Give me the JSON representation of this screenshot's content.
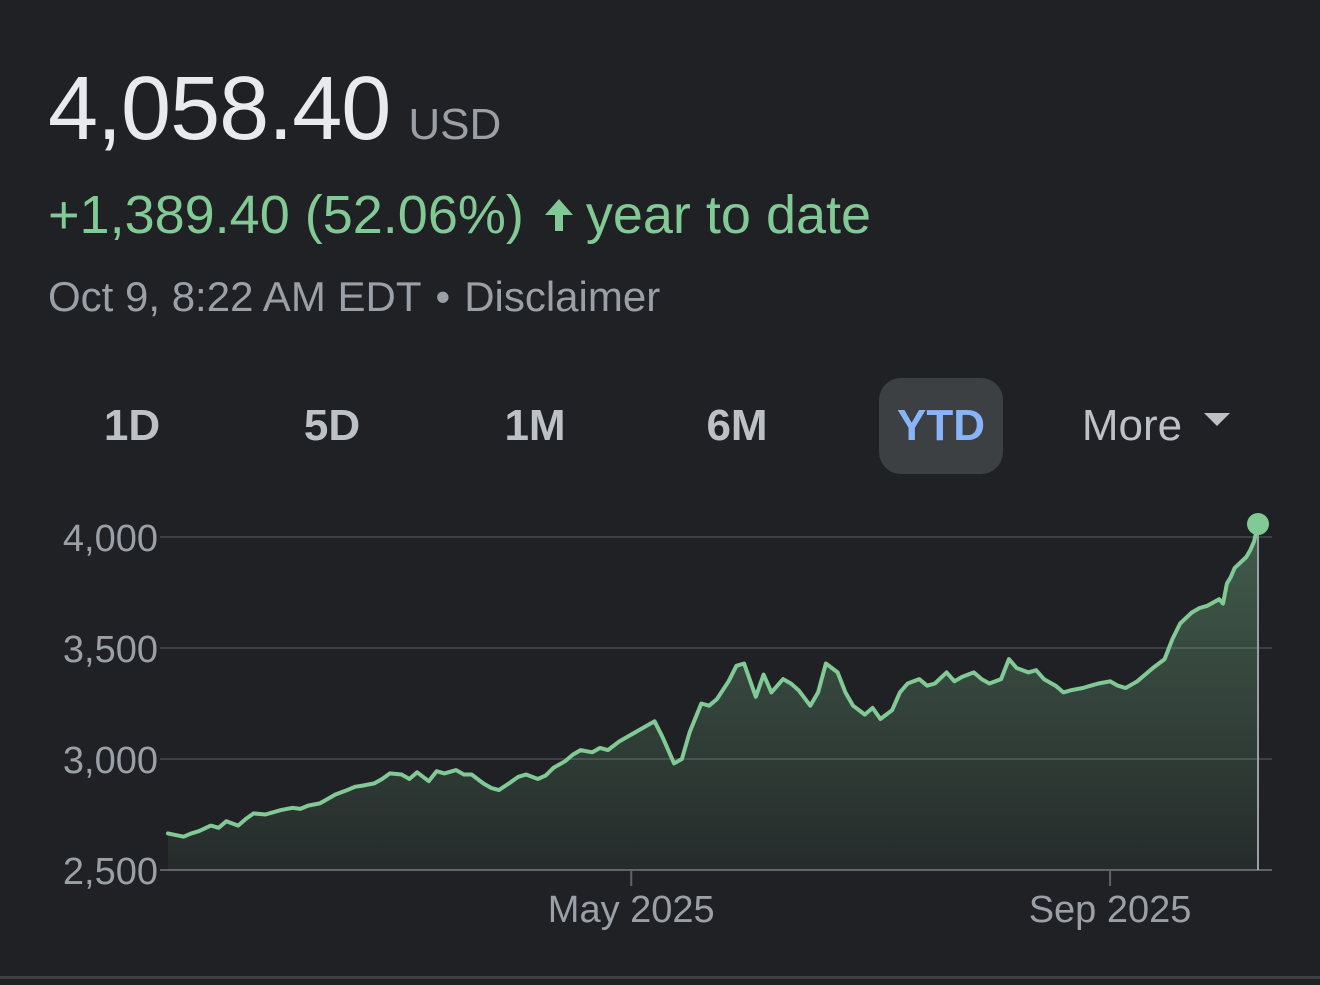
{
  "header": {
    "price": "4,058.40",
    "currency": "USD",
    "change": "+1,389.40 (52.06%)",
    "period": "year to date",
    "timestamp": "Oct 9, 8:22 AM EDT",
    "separator": "•",
    "disclaimer": "Disclaimer"
  },
  "range_tabs": [
    "1D",
    "5D",
    "1M",
    "6M",
    "YTD",
    "More"
  ],
  "active_tab": "YTD",
  "colors": {
    "background": "#202124",
    "positive": "#81c995",
    "active_tab_text": "#8ab4f8",
    "active_tab_bg": "#3c4043"
  },
  "chart_data": {
    "type": "area",
    "ylim": [
      2500,
      4000
    ],
    "yticks": [
      2500,
      3000,
      3500,
      4000
    ],
    "ytick_labels": [
      "2,500",
      "3,000",
      "3,500",
      "4,000"
    ],
    "x_range": [
      "2025-01-02",
      "2025-10-09"
    ],
    "xtick_labels": [
      {
        "date": "2025-05-01",
        "label": "May 2025"
      },
      {
        "date": "2025-09-01",
        "label": "Sep 2025"
      }
    ],
    "grid": "horizontal",
    "series": [
      {
        "points": [
          [
            "2025-01-02",
            2665
          ],
          [
            "2025-01-06",
            2650
          ],
          [
            "2025-01-08",
            2665
          ],
          [
            "2025-01-10",
            2675
          ],
          [
            "2025-01-13",
            2700
          ],
          [
            "2025-01-15",
            2690
          ],
          [
            "2025-01-17",
            2720
          ],
          [
            "2025-01-20",
            2700
          ],
          [
            "2025-01-22",
            2730
          ],
          [
            "2025-01-24",
            2755
          ],
          [
            "2025-01-27",
            2750
          ],
          [
            "2025-01-29",
            2760
          ],
          [
            "2025-01-31",
            2770
          ],
          [
            "2025-02-03",
            2780
          ],
          [
            "2025-02-05",
            2775
          ],
          [
            "2025-02-07",
            2790
          ],
          [
            "2025-02-10",
            2800
          ],
          [
            "2025-02-12",
            2820
          ],
          [
            "2025-02-14",
            2840
          ],
          [
            "2025-02-17",
            2860
          ],
          [
            "2025-02-19",
            2875
          ],
          [
            "2025-02-21",
            2880
          ],
          [
            "2025-02-24",
            2890
          ],
          [
            "2025-02-26",
            2910
          ],
          [
            "2025-02-28",
            2935
          ],
          [
            "2025-03-03",
            2930
          ],
          [
            "2025-03-05",
            2910
          ],
          [
            "2025-03-07",
            2940
          ],
          [
            "2025-03-10",
            2900
          ],
          [
            "2025-03-12",
            2945
          ],
          [
            "2025-03-14",
            2935
          ],
          [
            "2025-03-17",
            2950
          ],
          [
            "2025-03-19",
            2930
          ],
          [
            "2025-03-21",
            2930
          ],
          [
            "2025-03-24",
            2890
          ],
          [
            "2025-03-26",
            2870
          ],
          [
            "2025-03-28",
            2860
          ],
          [
            "2025-03-31",
            2895
          ],
          [
            "2025-04-02",
            2920
          ],
          [
            "2025-04-04",
            2930
          ],
          [
            "2025-04-07",
            2910
          ],
          [
            "2025-04-09",
            2925
          ],
          [
            "2025-04-11",
            2960
          ],
          [
            "2025-04-14",
            2990
          ],
          [
            "2025-04-16",
            3020
          ],
          [
            "2025-04-18",
            3040
          ],
          [
            "2025-04-21",
            3030
          ],
          [
            "2025-04-23",
            3050
          ],
          [
            "2025-04-25",
            3040
          ],
          [
            "2025-04-28",
            3080
          ],
          [
            "2025-04-30",
            3100
          ],
          [
            "2025-05-02",
            3120
          ],
          [
            "2025-05-05",
            3150
          ],
          [
            "2025-05-07",
            3170
          ],
          [
            "2025-05-09",
            3100
          ],
          [
            "2025-05-12",
            2980
          ],
          [
            "2025-05-14",
            3000
          ],
          [
            "2025-05-16",
            3120
          ],
          [
            "2025-05-19",
            3250
          ],
          [
            "2025-05-21",
            3240
          ],
          [
            "2025-05-23",
            3270
          ],
          [
            "2025-05-26",
            3350
          ],
          [
            "2025-05-28",
            3420
          ],
          [
            "2025-05-30",
            3430
          ],
          [
            "2025-06-02",
            3280
          ],
          [
            "2025-06-04",
            3380
          ],
          [
            "2025-06-06",
            3300
          ],
          [
            "2025-06-09",
            3360
          ],
          [
            "2025-06-11",
            3340
          ],
          [
            "2025-06-13",
            3310
          ],
          [
            "2025-06-16",
            3240
          ],
          [
            "2025-06-18",
            3300
          ],
          [
            "2025-06-20",
            3430
          ],
          [
            "2025-06-23",
            3390
          ],
          [
            "2025-06-25",
            3300
          ],
          [
            "2025-06-27",
            3240
          ],
          [
            "2025-06-30",
            3200
          ],
          [
            "2025-07-02",
            3230
          ],
          [
            "2025-07-04",
            3180
          ],
          [
            "2025-07-07",
            3220
          ],
          [
            "2025-07-09",
            3300
          ],
          [
            "2025-07-11",
            3340
          ],
          [
            "2025-07-14",
            3360
          ],
          [
            "2025-07-16",
            3330
          ],
          [
            "2025-07-18",
            3340
          ],
          [
            "2025-07-21",
            3390
          ],
          [
            "2025-07-23",
            3350
          ],
          [
            "2025-07-25",
            3370
          ],
          [
            "2025-07-28",
            3390
          ],
          [
            "2025-07-30",
            3360
          ],
          [
            "2025-08-01",
            3340
          ],
          [
            "2025-08-04",
            3360
          ],
          [
            "2025-08-06",
            3450
          ],
          [
            "2025-08-08",
            3410
          ],
          [
            "2025-08-11",
            3390
          ],
          [
            "2025-08-13",
            3400
          ],
          [
            "2025-08-15",
            3360
          ],
          [
            "2025-08-18",
            3330
          ],
          [
            "2025-08-20",
            3300
          ],
          [
            "2025-08-22",
            3310
          ],
          [
            "2025-08-25",
            3320
          ],
          [
            "2025-08-27",
            3330
          ],
          [
            "2025-08-29",
            3340
          ],
          [
            "2025-09-01",
            3350
          ],
          [
            "2025-09-03",
            3330
          ],
          [
            "2025-09-05",
            3320
          ],
          [
            "2025-09-08",
            3350
          ],
          [
            "2025-09-10",
            3380
          ],
          [
            "2025-09-12",
            3410
          ],
          [
            "2025-09-15",
            3450
          ],
          [
            "2025-09-17",
            3540
          ],
          [
            "2025-09-19",
            3610
          ],
          [
            "2025-09-22",
            3660
          ],
          [
            "2025-09-24",
            3680
          ],
          [
            "2025-09-26",
            3690
          ],
          [
            "2025-09-29",
            3720
          ],
          [
            "2025-09-30",
            3700
          ],
          [
            "2025-10-01",
            3790
          ],
          [
            "2025-10-02",
            3820
          ],
          [
            "2025-10-03",
            3860
          ],
          [
            "2025-10-06",
            3910
          ],
          [
            "2025-10-07",
            3940
          ],
          [
            "2025-10-08",
            3980
          ],
          [
            "2025-10-09",
            4058.4
          ]
        ]
      }
    ]
  }
}
